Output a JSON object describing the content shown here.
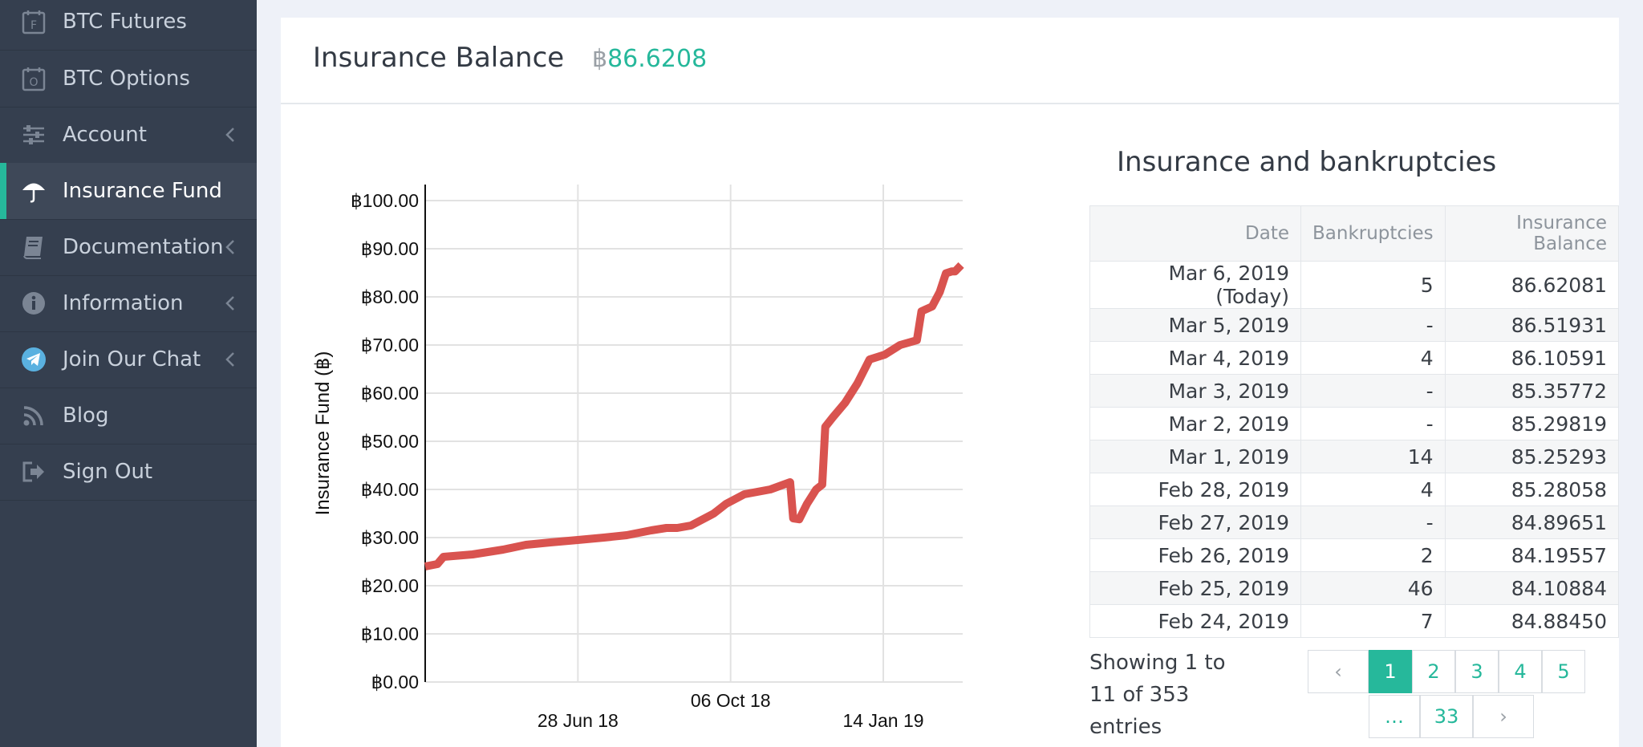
{
  "sidebar": {
    "items": [
      {
        "label": "BTC Futures",
        "icon": "futures-calendar-icon"
      },
      {
        "label": "BTC Options",
        "icon": "options-calendar-icon"
      },
      {
        "label": "Account",
        "icon": "sliders-icon",
        "chevron": true
      },
      {
        "label": "Insurance Fund",
        "icon": "umbrella-icon",
        "active": true
      },
      {
        "label": "Documentation",
        "icon": "book-icon",
        "chevron": true
      },
      {
        "label": "Information",
        "icon": "info-icon",
        "chevron": true
      },
      {
        "label": "Join Our Chat",
        "icon": "telegram-icon",
        "chevron": true
      },
      {
        "label": "Blog",
        "icon": "rss-icon"
      },
      {
        "label": "Sign Out",
        "icon": "sign-out-icon"
      }
    ]
  },
  "header": {
    "title": "Insurance Balance",
    "balance_symbol": "฿",
    "balance_value": "86.6208"
  },
  "chart_data": {
    "type": "line",
    "ylabel": "Insurance Fund (฿)",
    "yticks": [
      "฿0.00",
      "฿10.00",
      "฿20.00",
      "฿30.00",
      "฿40.00",
      "฿50.00",
      "฿60.00",
      "฿70.00",
      "฿80.00",
      "฿90.00",
      "฿100.00"
    ],
    "ylim": [
      0,
      100
    ],
    "xticks": [
      "28 Jun 18",
      "06 Oct 18",
      "14 Jan 19"
    ],
    "x": [
      "2018-03-20",
      "2018-03-28",
      "2018-04-01",
      "2018-04-20",
      "2018-05-10",
      "2018-05-25",
      "2018-06-10",
      "2018-06-28",
      "2018-07-15",
      "2018-07-30",
      "2018-08-15",
      "2018-08-25",
      "2018-09-01",
      "2018-09-10",
      "2018-09-25",
      "2018-10-03",
      "2018-10-15",
      "2018-11-01",
      "2018-11-14",
      "2018-11-16",
      "2018-11-20",
      "2018-11-25",
      "2018-12-01",
      "2018-12-05",
      "2018-12-07",
      "2018-12-12",
      "2018-12-20",
      "2018-12-28",
      "2019-01-05",
      "2019-01-15",
      "2019-01-25",
      "2019-02-05",
      "2019-02-08",
      "2019-02-15",
      "2019-02-20",
      "2019-02-24",
      "2019-02-28",
      "2019-03-02",
      "2019-03-06"
    ],
    "y": [
      24,
      24.5,
      26,
      26.5,
      27.5,
      28.5,
      29,
      29.5,
      30,
      30.5,
      31.5,
      32,
      32,
      32.5,
      35,
      37,
      39,
      40,
      41.5,
      34,
      33.8,
      37,
      40,
      41,
      53,
      55,
      58,
      62,
      67,
      68,
      70,
      71,
      77,
      78,
      81,
      84.9,
      85.3,
      85.3,
      86.6
    ],
    "color": "#d9534f",
    "grid": true
  },
  "table": {
    "title": "Insurance and bankruptcies",
    "columns": [
      "Date",
      "Bankruptcies",
      "Insurance Balance"
    ],
    "rows": [
      [
        "Mar 6, 2019 (Today)",
        "5",
        "86.62081"
      ],
      [
        "Mar 5, 2019",
        "-",
        "86.51931"
      ],
      [
        "Mar 4, 2019",
        "4",
        "86.10591"
      ],
      [
        "Mar 3, 2019",
        "-",
        "85.35772"
      ],
      [
        "Mar 2, 2019",
        "-",
        "85.29819"
      ],
      [
        "Mar 1, 2019",
        "14",
        "85.25293"
      ],
      [
        "Feb 28, 2019",
        "4",
        "85.28058"
      ],
      [
        "Feb 27, 2019",
        "-",
        "84.89651"
      ],
      [
        "Feb 26, 2019",
        "2",
        "84.19557"
      ],
      [
        "Feb 25, 2019",
        "46",
        "84.10884"
      ],
      [
        "Feb 24, 2019",
        "7",
        "84.88450"
      ]
    ],
    "info": "Showing 1 to 11 of 353 entries"
  },
  "pagination": {
    "prev": "‹",
    "pages": [
      "1",
      "2",
      "3",
      "4",
      "5"
    ],
    "ellipsis": "…",
    "last": "33",
    "next": "›",
    "active": "1"
  },
  "colors": {
    "accent": "#26b89b",
    "sidebar": "#353f4f",
    "line": "#d9534f"
  }
}
